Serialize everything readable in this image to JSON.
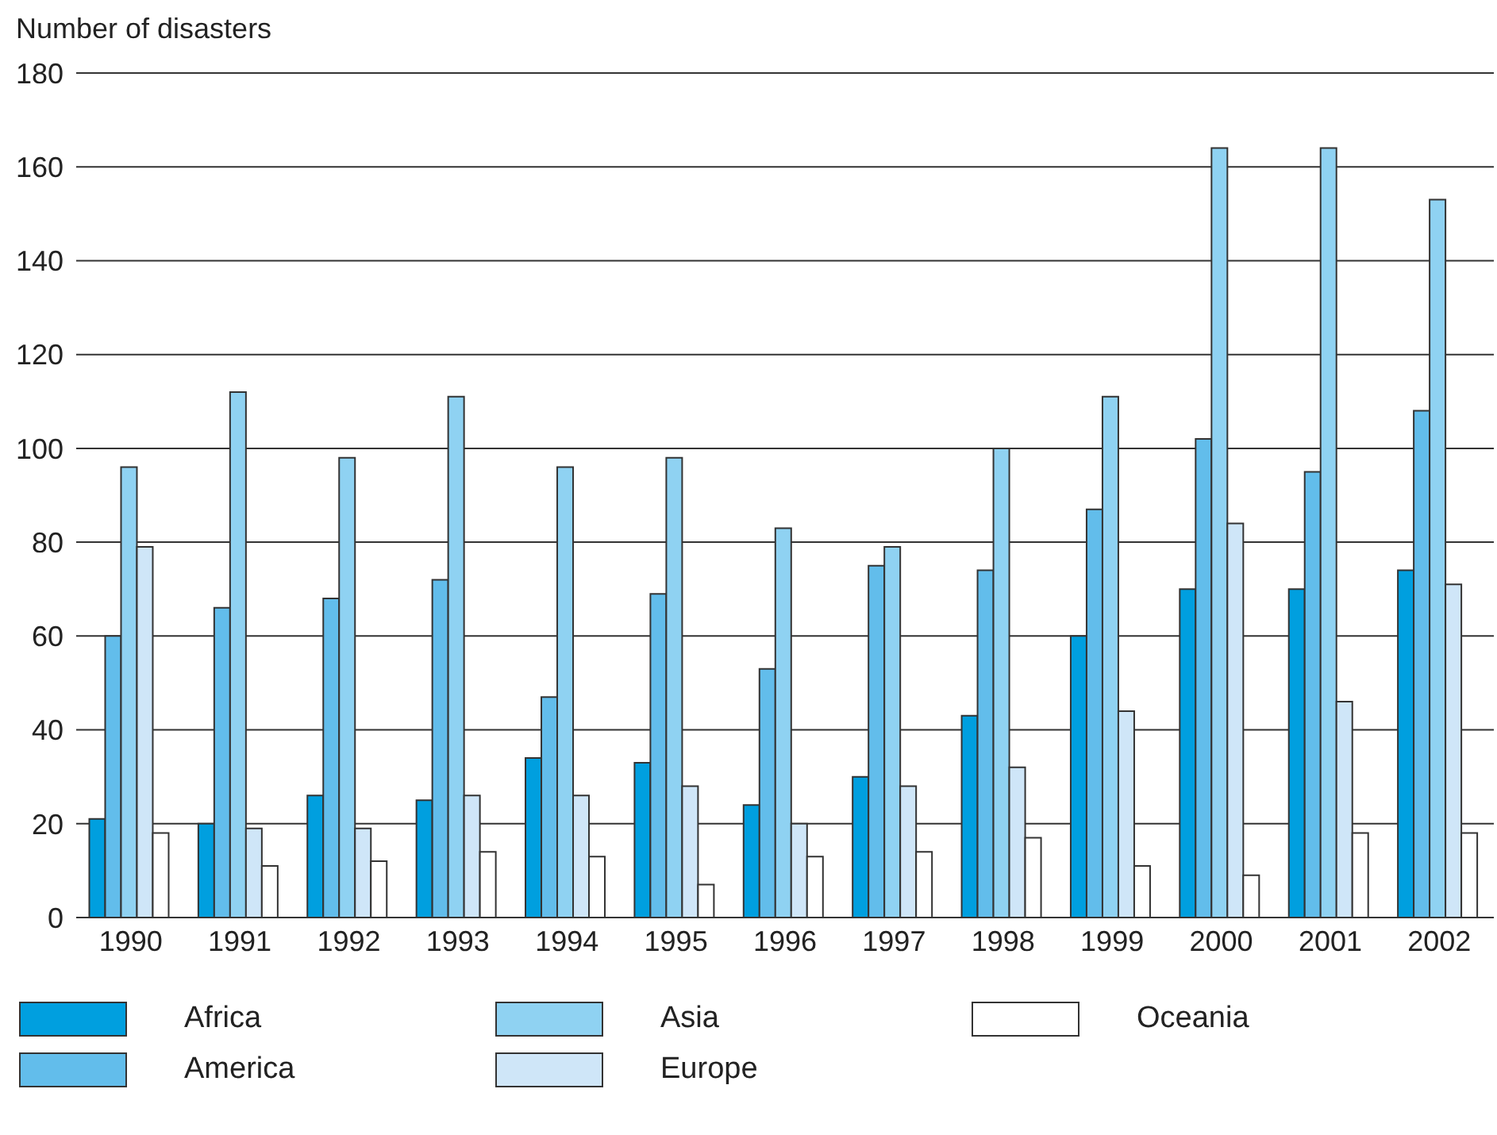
{
  "chart_data": {
    "type": "bar",
    "ylabel": "Number of disasters",
    "categories": [
      "1990",
      "1991",
      "1992",
      "1993",
      "1994",
      "1995",
      "1996",
      "1997",
      "1998",
      "1999",
      "2000",
      "2001",
      "2002"
    ],
    "series": [
      {
        "name": "Africa",
        "color": "#009fdf",
        "values": [
          21,
          20,
          26,
          25,
          34,
          33,
          24,
          30,
          43,
          60,
          70,
          70,
          74
        ]
      },
      {
        "name": "America",
        "color": "#62bdeb",
        "values": [
          60,
          66,
          68,
          72,
          47,
          69,
          53,
          75,
          74,
          87,
          102,
          95,
          108
        ]
      },
      {
        "name": "Asia",
        "color": "#8fd2f2",
        "values": [
          96,
          112,
          98,
          111,
          96,
          98,
          83,
          79,
          100,
          111,
          164,
          164,
          153
        ]
      },
      {
        "name": "Europe",
        "color": "#cfe6f8",
        "values": [
          79,
          19,
          19,
          26,
          26,
          28,
          20,
          28,
          32,
          44,
          84,
          46,
          71
        ]
      },
      {
        "name": "Oceania",
        "color": "#ffffff",
        "values": [
          18,
          11,
          12,
          14,
          13,
          7,
          13,
          14,
          17,
          11,
          9,
          18,
          18
        ]
      }
    ],
    "ylim": [
      0,
      180
    ],
    "yticks": [
      0,
      20,
      40,
      60,
      80,
      100,
      120,
      140,
      160,
      180
    ],
    "grid": "y",
    "legend": "bottom"
  }
}
